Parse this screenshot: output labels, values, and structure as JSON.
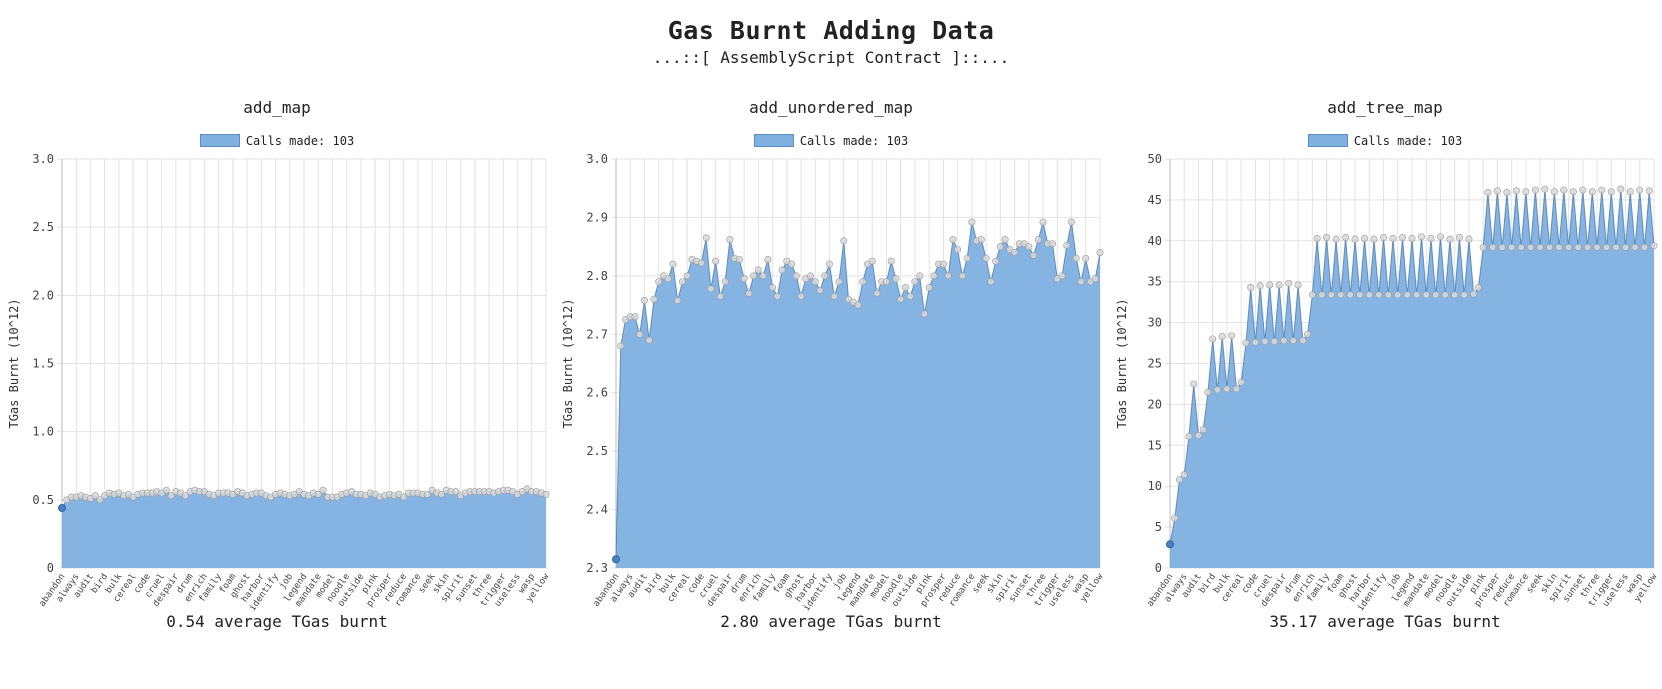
{
  "page": {
    "title": "Gas Burnt Adding Data",
    "subtitle": "...::[ AssemblyScript Contract ]::..."
  },
  "colors": {
    "fill": "#7fb0e0",
    "line": "#3c6fa8",
    "point": "#d9d9d9",
    "grid": "#e3e3e3"
  },
  "chart_data": [
    {
      "type": "area",
      "title": "add_map",
      "legend": "Calls made: 103",
      "ylabel": "TGas Burnt (10^12)",
      "ylim": [
        0,
        3.0
      ],
      "yticks": [
        "0",
        "0.5",
        "1.0",
        "1.5",
        "2.0",
        "2.5",
        "3.0"
      ],
      "ytick_values": [
        0,
        0.5,
        1.0,
        1.5,
        2.0,
        2.5,
        3.0
      ],
      "x_tick_labels": [
        "abandon",
        "always",
        "audit",
        "bird",
        "bulk",
        "cereal",
        "code",
        "cruel",
        "despair",
        "drum",
        "enrich",
        "family",
        "foam",
        "ghost",
        "harbor",
        "identify",
        "job",
        "legend",
        "mandate",
        "model",
        "noodle",
        "outside",
        "pink",
        "prosper",
        "reduce",
        "romance",
        "seek",
        "skin",
        "spirit",
        "sunset",
        "three",
        "trigger",
        "useless",
        "wasp",
        "yellow"
      ],
      "summary": "0.54 average TGas burnt",
      "values": [
        0.44,
        0.5,
        0.52,
        0.52,
        0.53,
        0.52,
        0.51,
        0.53,
        0.5,
        0.53,
        0.55,
        0.54,
        0.55,
        0.53,
        0.54,
        0.52,
        0.54,
        0.55,
        0.55,
        0.55,
        0.56,
        0.55,
        0.57,
        0.53,
        0.56,
        0.55,
        0.53,
        0.56,
        0.57,
        0.56,
        0.56,
        0.54,
        0.53,
        0.55,
        0.55,
        0.55,
        0.54,
        0.56,
        0.55,
        0.53,
        0.54,
        0.55,
        0.55,
        0.53,
        0.52,
        0.54,
        0.55,
        0.54,
        0.53,
        0.54,
        0.56,
        0.54,
        0.53,
        0.55,
        0.54,
        0.57,
        0.52,
        0.52,
        0.52,
        0.54,
        0.55,
        0.56,
        0.54,
        0.54,
        0.53,
        0.55,
        0.54,
        0.52,
        0.53,
        0.54,
        0.53,
        0.54,
        0.52,
        0.55,
        0.55,
        0.55,
        0.54,
        0.54,
        0.57,
        0.55,
        0.54,
        0.57,
        0.56,
        0.56,
        0.53,
        0.55,
        0.56,
        0.56,
        0.56,
        0.56,
        0.56,
        0.55,
        0.56,
        0.57,
        0.57,
        0.56,
        0.54,
        0.56,
        0.58,
        0.56,
        0.56,
        0.55,
        0.54
      ]
    },
    {
      "type": "area",
      "title": "add_unordered_map",
      "legend": "Calls made: 103",
      "ylabel": "TGas Burnt (10^12)",
      "ylim": [
        2.3,
        3.0
      ],
      "yticks": [
        "2.3",
        "2.4",
        "2.5",
        "2.6",
        "2.7",
        "2.8",
        "2.9",
        "3.0"
      ],
      "ytick_values": [
        2.3,
        2.4,
        2.5,
        2.6,
        2.7,
        2.8,
        2.9,
        3.0
      ],
      "x_tick_labels": [
        "abandon",
        "always",
        "audit",
        "bird",
        "bulk",
        "cereal",
        "code",
        "cruel",
        "despair",
        "drum",
        "enrich",
        "family",
        "foam",
        "ghost",
        "harbor",
        "identify",
        "job",
        "legend",
        "mandate",
        "model",
        "noodle",
        "outside",
        "pink",
        "prosper",
        "reduce",
        "romance",
        "seek",
        "skin",
        "spirit",
        "sunset",
        "three",
        "trigger",
        "useless",
        "wasp",
        "yellow"
      ],
      "summary": "2.80 average TGas burnt",
      "values": [
        2.315,
        2.68,
        2.725,
        2.73,
        2.73,
        2.7,
        2.758,
        2.69,
        2.76,
        2.79,
        2.8,
        2.795,
        2.82,
        2.758,
        2.79,
        2.8,
        2.828,
        2.825,
        2.822,
        2.865,
        2.778,
        2.825,
        2.765,
        2.79,
        2.862,
        2.83,
        2.828,
        2.795,
        2.77,
        2.8,
        2.81,
        2.8,
        2.828,
        2.78,
        2.765,
        2.81,
        2.825,
        2.82,
        2.8,
        2.765,
        2.795,
        2.8,
        2.79,
        2.775,
        2.8,
        2.82,
        2.765,
        2.79,
        2.86,
        2.76,
        2.755,
        2.75,
        2.79,
        2.82,
        2.825,
        2.77,
        2.79,
        2.79,
        2.825,
        2.795,
        2.76,
        2.78,
        2.765,
        2.79,
        2.8,
        2.735,
        2.78,
        2.8,
        2.82,
        2.82,
        2.8,
        2.862,
        2.845,
        2.8,
        2.83,
        2.892,
        2.86,
        2.862,
        2.83,
        2.79,
        2.825,
        2.85,
        2.862,
        2.845,
        2.84,
        2.855,
        2.855,
        2.85,
        2.835,
        2.862,
        2.892,
        2.855,
        2.855,
        2.795,
        2.8,
        2.852,
        2.892,
        2.83,
        2.79,
        2.83,
        2.79,
        2.795,
        2.84
      ]
    },
    {
      "type": "area",
      "title": "add_tree_map",
      "legend": "Calls made: 103",
      "ylabel": "TGas Burnt (10^12)",
      "ylim": [
        0,
        50
      ],
      "yticks": [
        "0",
        "5",
        "10",
        "15",
        "20",
        "25",
        "30",
        "35",
        "40",
        "45",
        "50"
      ],
      "ytick_values": [
        0,
        5,
        10,
        15,
        20,
        25,
        30,
        35,
        40,
        45,
        50
      ],
      "x_tick_labels": [
        "abandon",
        "always",
        "audit",
        "bird",
        "bulk",
        "cereal",
        "code",
        "cruel",
        "despair",
        "drum",
        "enrich",
        "family",
        "foam",
        "ghost",
        "harbor",
        "identify",
        "job",
        "legend",
        "mandate",
        "model",
        "noodle",
        "outside",
        "pink",
        "prosper",
        "reduce",
        "romance",
        "seek",
        "skin",
        "spirit",
        "sunset",
        "three",
        "trigger",
        "useless",
        "wasp",
        "yellow"
      ],
      "summary": "35.17 average TGas burnt",
      "values": [
        2.9,
        6.1,
        10.8,
        11.4,
        16.1,
        22.5,
        16.2,
        16.9,
        21.5,
        28.0,
        21.8,
        28.3,
        21.9,
        28.4,
        21.9,
        22.7,
        27.5,
        34.3,
        27.6,
        34.5,
        27.7,
        34.6,
        27.7,
        34.6,
        27.8,
        34.8,
        27.8,
        34.6,
        27.8,
        28.6,
        33.4,
        40.3,
        33.4,
        40.4,
        33.4,
        40.2,
        33.4,
        40.4,
        33.4,
        40.2,
        33.4,
        40.3,
        33.4,
        40.2,
        33.4,
        40.4,
        33.4,
        40.3,
        33.4,
        40.4,
        33.4,
        40.3,
        33.4,
        40.5,
        33.4,
        40.3,
        33.4,
        40.5,
        33.4,
        40.2,
        33.4,
        40.4,
        33.4,
        40.2,
        33.5,
        34.3,
        39.2,
        45.9,
        39.2,
        46.1,
        39.2,
        45.9,
        39.2,
        46.1,
        39.2,
        46.0,
        39.2,
        46.2,
        39.2,
        46.3,
        39.2,
        46.0,
        39.2,
        46.2,
        39.2,
        46.0,
        39.2,
        46.2,
        39.2,
        46.0,
        39.2,
        46.2,
        39.2,
        46.0,
        39.2,
        46.3,
        39.2,
        46.0,
        39.2,
        46.2,
        39.2,
        46.1,
        39.4
      ]
    }
  ]
}
